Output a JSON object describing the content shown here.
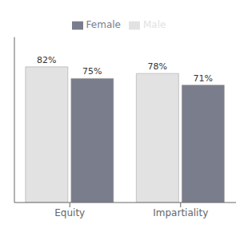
{
  "chart_data": {
    "type": "bar",
    "categories": [
      "Equity",
      "Impartiality"
    ],
    "series": [
      {
        "name": "Male",
        "color": "#e2e2e2",
        "values": [
          82,
          78
        ],
        "value_labels": [
          "82%",
          "78%"
        ]
      },
      {
        "name": "Female",
        "color": "#7a7d8c",
        "values": [
          75,
          71
        ],
        "value_labels": [
          "75%",
          "71%"
        ]
      }
    ],
    "ylim": [
      0,
      100
    ],
    "data_labels": true,
    "tick_labels": "x",
    "legend": "top",
    "grid": false
  }
}
